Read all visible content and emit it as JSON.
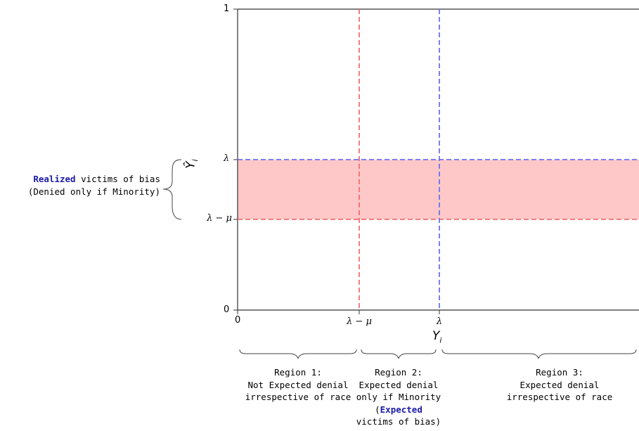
{
  "axes": {
    "xlabel": "Y",
    "xlabel_sub": "i",
    "ylabel": "Ŷ",
    "ylabel_sub": "i",
    "x_ticks": [
      "0",
      "λ − μ",
      "λ"
    ],
    "y_ticks": [
      "0",
      "λ − μ",
      "λ",
      "1"
    ]
  },
  "bands": {
    "shade_color": "#ffc8c8",
    "red_line_color": "#f07070",
    "blue_line_color": "#7070ee"
  },
  "left_annotation": {
    "highlight": "Realized",
    "line1_rest": " victims of bias",
    "line2": "(Denied only if Minority)"
  },
  "regions": [
    {
      "line1": "Region 1:",
      "line2": "Not Expected denial",
      "line3": "irrespective of race"
    },
    {
      "line1": "Region 2:",
      "line2": "Expected denial",
      "line3": "only if Minority",
      "line4_open": "(",
      "line4_highlight": "Expected",
      "line5": "victims of bias)"
    },
    {
      "line1": "Region 3:",
      "line2": "Expected denial",
      "line3": "irrespective of race"
    }
  ]
}
